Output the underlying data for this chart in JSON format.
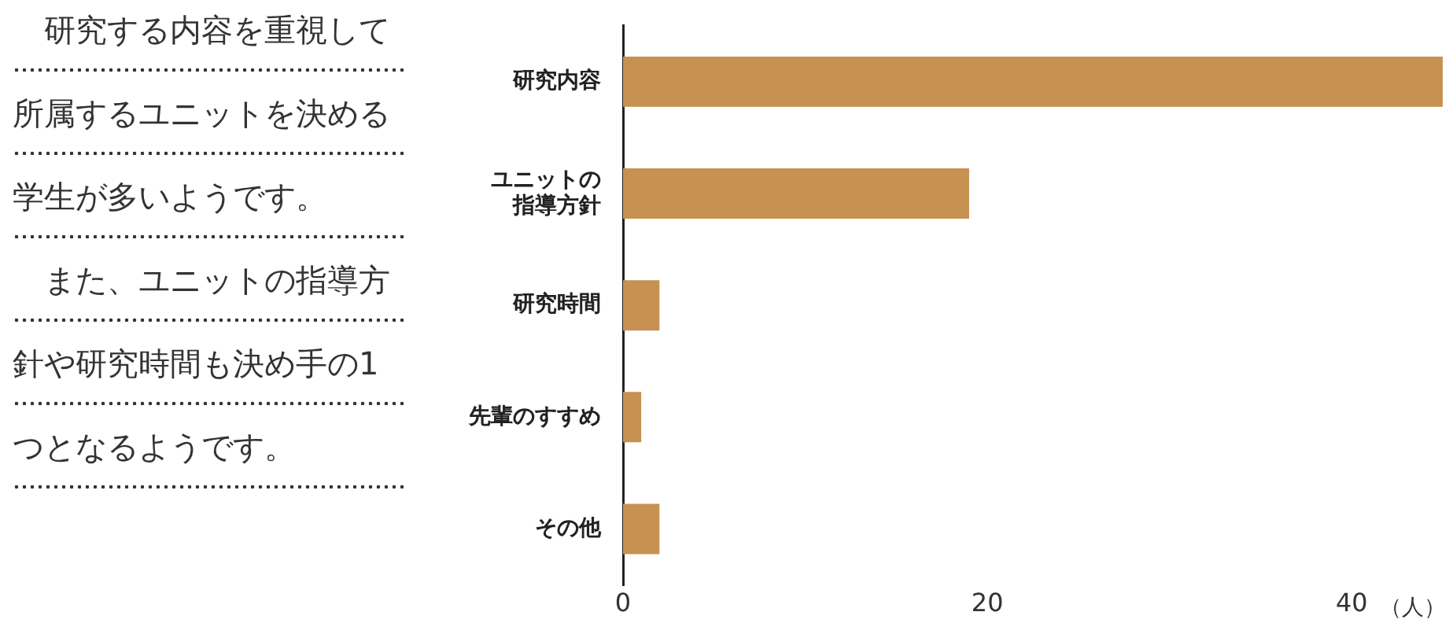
{
  "chart_data": {
    "type": "bar",
    "orientation": "horizontal",
    "categories": [
      "研究内容",
      "ユニットの指導方針",
      "研究時間",
      "先輩のすすめ",
      "その他"
    ],
    "values": [
      45,
      19,
      2,
      1,
      2
    ],
    "color": "#c69151",
    "xlim": [
      0,
      45
    ],
    "xticks": [
      0,
      20,
      40
    ],
    "xlabel": "（人）",
    "grid": false,
    "legend": false,
    "annotations": [
      "研究する内容を重視して所属するユニットを決める学生が多いようです。",
      "また、ユニットの指導方針や研究時間も決め手の1つとなるようです。"
    ]
  }
}
